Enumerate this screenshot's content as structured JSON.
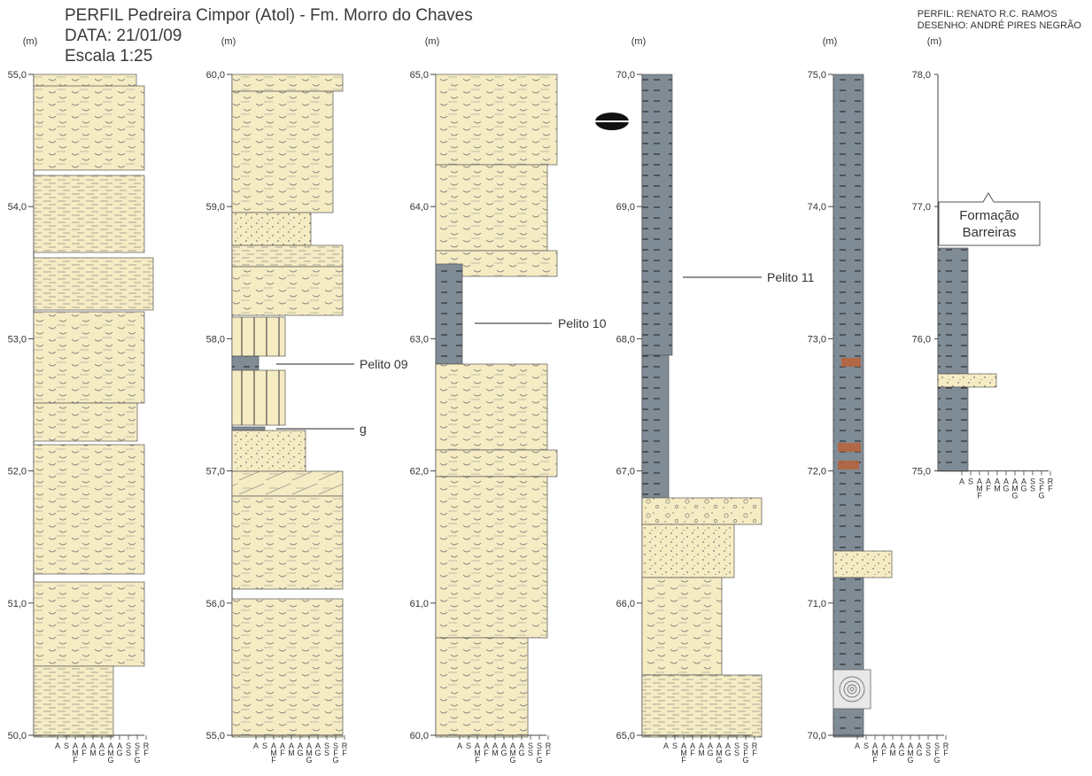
{
  "header": {
    "title": "PERFIL Pedreira Cimpor (Atol) - Fm. Morro do Chaves",
    "date": "DATA: 21/01/09",
    "scale": "Escala 1:25"
  },
  "credits": {
    "profile": "PERFIL: RENATO R.C. RAMOS",
    "drawing": "DESENHO: ANDRÉ PIRES NEGRÃO"
  },
  "unit_label": "(m)",
  "grain_scale": [
    "A",
    "S",
    "A\nM\nF",
    "A\nF",
    "A\nM",
    "A\nG",
    "A\nM\nG",
    "A\nG",
    "S\nS",
    "S\nF\nG",
    "R\nF"
  ],
  "colors": {
    "sandstone": "#f6ecc4",
    "mudstone": "#7f8c96",
    "outline": "#555555",
    "oxide": "#b8623a"
  },
  "columns": [
    {
      "id": "c1",
      "ticks": [
        "55,0",
        "54,0",
        "53,0",
        "52,0",
        "51,0",
        "50,0"
      ]
    },
    {
      "id": "c2",
      "ticks": [
        "60,0",
        "59,0",
        "58,0",
        "57,0",
        "56,0",
        "55,0"
      ]
    },
    {
      "id": "c3",
      "ticks": [
        "65,0",
        "64,0",
        "63,0",
        "62,0",
        "61,0",
        "60,0"
      ]
    },
    {
      "id": "c4",
      "ticks": [
        "70,0",
        "69,0",
        "68,0",
        "67,0",
        "66,0",
        "65,0"
      ]
    },
    {
      "id": "c5",
      "ticks": [
        "75,0",
        "74,0",
        "73,0",
        "72,0",
        "71,0",
        "70,0"
      ]
    },
    {
      "id": "c6",
      "ticks": [
        "78,0",
        "77,0",
        "76,0",
        "75,0"
      ]
    }
  ],
  "annotations": {
    "pelito09": "Pelito 09",
    "g": "g",
    "pelito10": "Pelito 10",
    "pelito11": "Pelito 11",
    "barreiras_1": "Formação",
    "barreiras_2": "Barreiras"
  }
}
